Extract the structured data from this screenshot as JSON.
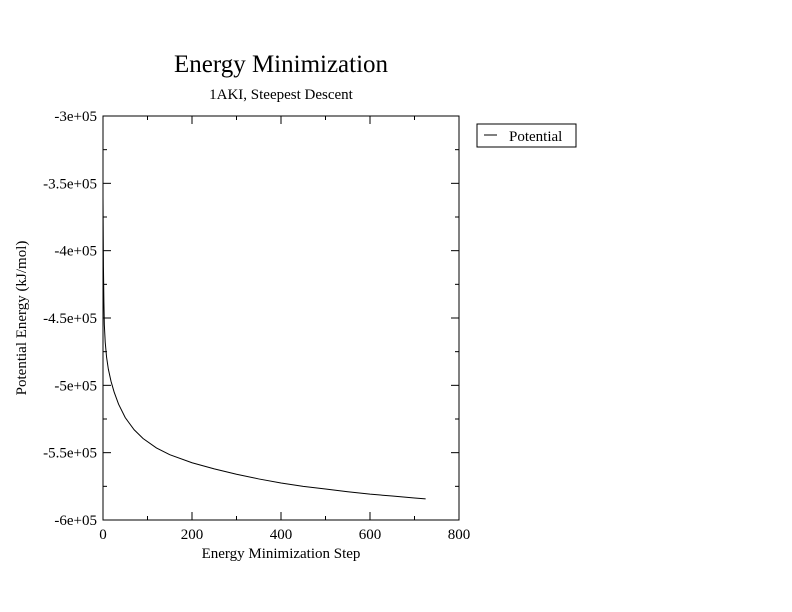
{
  "chart_data": {
    "type": "line",
    "title": "Energy Minimization",
    "subtitle": "1AKI, Steepest Descent",
    "xlabel": "Energy Minimization Step",
    "ylabel": "Potential Energy (kJ/mol)",
    "xlim": [
      0,
      800
    ],
    "ylim": [
      -600000,
      -300000
    ],
    "x_ticks": [
      0,
      200,
      400,
      600,
      800
    ],
    "x_tick_labels": [
      "0",
      "200",
      "400",
      "600",
      "800"
    ],
    "y_ticks": [
      -300000,
      -350000,
      -400000,
      -450000,
      -500000,
      -550000,
      -600000
    ],
    "y_tick_labels": [
      "-3e+05",
      "-3.5e+05",
      "-4e+05",
      "-4.5e+05",
      "-5e+05",
      "-5.5e+05",
      "-6e+05"
    ],
    "grid": false,
    "legend": "top-right, outside plot",
    "series": [
      {
        "name": "Potential",
        "color": "#000000",
        "x": [
          0,
          1,
          2,
          3,
          5,
          8,
          12,
          18,
          25,
          35,
          50,
          70,
          90,
          120,
          150,
          200,
          250,
          300,
          350,
          400,
          450,
          500,
          550,
          600,
          650,
          700,
          725
        ],
        "y": [
          -360000,
          -412000,
          -438000,
          -455000,
          -468000,
          -479000,
          -488000,
          -497000,
          -505000,
          -514000,
          -524000,
          -533000,
          -539500,
          -546500,
          -551500,
          -557500,
          -562000,
          -566000,
          -569500,
          -572500,
          -575000,
          -577000,
          -579000,
          -580800,
          -582200,
          -583700,
          -584300
        ]
      }
    ]
  }
}
